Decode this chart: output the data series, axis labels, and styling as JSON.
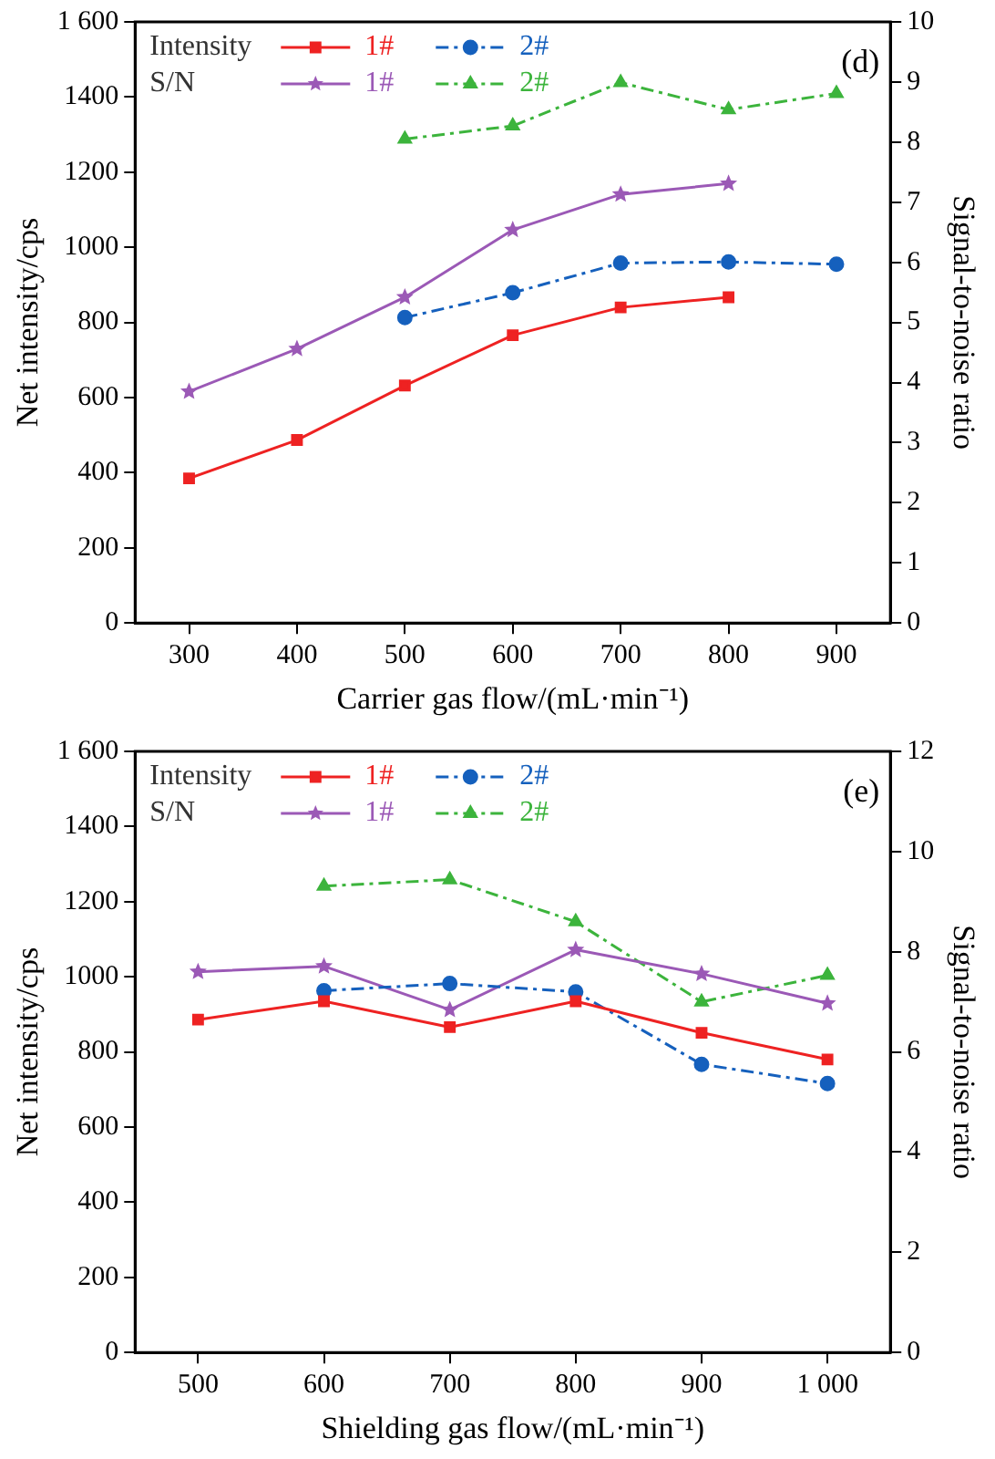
{
  "chart_data": [
    {
      "type": "line",
      "xlabel": "Carrier gas flow/(mL·min⁻¹)",
      "ylabel": "Net intensity/cps",
      "y2label": "Signal-to-noise ratio",
      "annotations": [
        "(d)",
        "Intensity",
        "S/N"
      ],
      "legend": "top left",
      "grid": false,
      "xlim": [
        250,
        950
      ],
      "xticks": [
        300,
        400,
        500,
        600,
        700,
        800,
        900
      ],
      "ylim": [
        0,
        1600
      ],
      "yticks": [
        0,
        200,
        400,
        600,
        800,
        1000,
        1200,
        1400,
        {
          "value": 1600,
          "label": "1 600"
        }
      ],
      "y2lim": [
        0,
        10
      ],
      "y2ticks": [
        0,
        1,
        2,
        3,
        4,
        5,
        6,
        7,
        8,
        9,
        10
      ],
      "series": [
        {
          "name": "1#",
          "color": "#ee2222",
          "axis": "y",
          "marker": "square",
          "line_style": "solid",
          "x": [
            300,
            400,
            500,
            600,
            700,
            800
          ],
          "values": [
            385,
            487,
            632,
            766,
            840,
            867
          ]
        },
        {
          "name": "2#",
          "color": "#1560bd",
          "axis": "y",
          "marker": "circle",
          "line_style": "dashed",
          "x": [
            500,
            600,
            700,
            800,
            900
          ],
          "values": [
            813,
            879,
            958,
            961,
            955
          ]
        },
        {
          "name": "1#",
          "color": "#9b59b6",
          "axis": "y2",
          "marker": "star",
          "line_style": "solid",
          "x": [
            300,
            400,
            500,
            600,
            700,
            800
          ],
          "values": [
            3.85,
            4.56,
            5.42,
            6.54,
            7.13,
            7.31
          ]
        },
        {
          "name": "2#",
          "color": "#3cb43c",
          "axis": "y2",
          "marker": "triangle",
          "line_style": "dashed",
          "x": [
            500,
            600,
            700,
            800,
            900
          ],
          "values": [
            8.05,
            8.27,
            8.99,
            8.54,
            8.81
          ]
        }
      ]
    },
    {
      "type": "line",
      "xlabel": "Shielding gas flow/(mL·min⁻¹)",
      "ylabel": "Net intensity/cps",
      "y2label": "Signal-to-noise ratio",
      "annotations": [
        "(e)",
        "Intensity",
        "S/N"
      ],
      "legend": "top left",
      "grid": false,
      "xlim": [
        450,
        1050
      ],
      "xticks": [
        500,
        600,
        700,
        800,
        900,
        {
          "value": 1000,
          "label": "1 000"
        }
      ],
      "ylim": [
        0,
        1600
      ],
      "yticks": [
        0,
        200,
        400,
        600,
        800,
        1000,
        1200,
        1400,
        {
          "value": 1600,
          "label": "1 600"
        }
      ],
      "y2lim": [
        0,
        12
      ],
      "y2ticks": [
        0,
        2,
        4,
        6,
        8,
        10,
        12
      ],
      "series": [
        {
          "name": "1#",
          "color": "#ee2222",
          "axis": "y",
          "marker": "square",
          "line_style": "solid",
          "x": [
            500,
            600,
            700,
            800,
            900,
            1000
          ],
          "values": [
            886,
            935,
            866,
            935,
            851,
            780
          ]
        },
        {
          "name": "2#",
          "color": "#1560bd",
          "axis": "y",
          "marker": "circle",
          "line_style": "dashed",
          "x": [
            600,
            700,
            800,
            900,
            1000
          ],
          "values": [
            963,
            982,
            960,
            767,
            716
          ]
        },
        {
          "name": "1#",
          "color": "#9b59b6",
          "axis": "y2",
          "marker": "star",
          "line_style": "solid",
          "x": [
            500,
            600,
            700,
            800,
            900,
            1000
          ],
          "values": [
            7.6,
            7.71,
            6.84,
            8.04,
            7.56,
            6.97
          ]
        },
        {
          "name": "2#",
          "color": "#3cb43c",
          "axis": "y2",
          "marker": "triangle",
          "line_style": "dashed",
          "x": [
            600,
            700,
            800,
            900,
            1000
          ],
          "values": [
            9.31,
            9.44,
            8.6,
            7.0,
            7.53
          ]
        }
      ]
    }
  ]
}
